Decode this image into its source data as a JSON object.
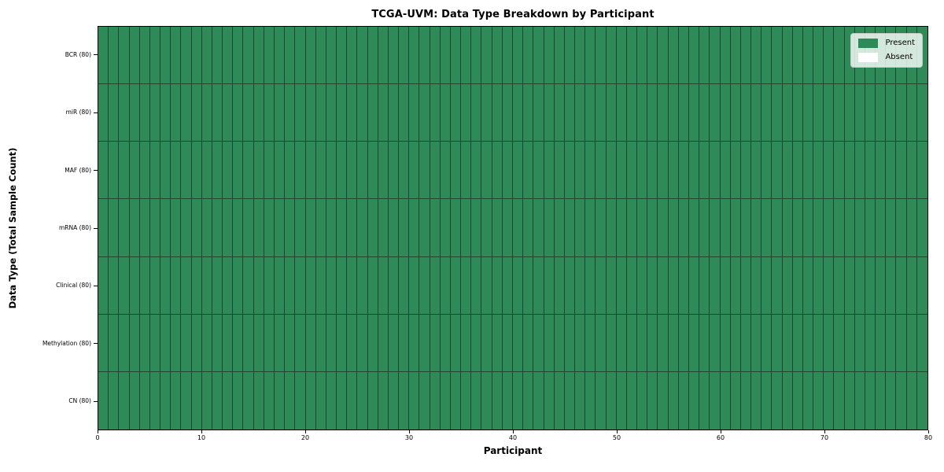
{
  "chart_data": {
    "type": "heatmap",
    "title": "TCGA-UVM: Data Type Breakdown by Participant",
    "xlabel": "Participant",
    "ylabel": "Data Type (Total Sample Count)",
    "xlim": [
      0,
      80
    ],
    "x_ticks": [
      0,
      10,
      20,
      30,
      40,
      50,
      60,
      70,
      80
    ],
    "n_participants": 80,
    "rows": [
      {
        "label": "BCR (80)",
        "present_count": 80,
        "absent_count": 0
      },
      {
        "label": "miR (80)",
        "present_count": 80,
        "absent_count": 0
      },
      {
        "label": "MAF (80)",
        "present_count": 80,
        "absent_count": 0
      },
      {
        "label": "mRNA (80)",
        "present_count": 80,
        "absent_count": 0
      },
      {
        "label": "Clinical (80)",
        "present_count": 80,
        "absent_count": 0
      },
      {
        "label": "Methylation (80)",
        "present_count": 80,
        "absent_count": 0
      },
      {
        "label": "CN (80)",
        "present_count": 80,
        "absent_count": 0
      }
    ],
    "legend": [
      {
        "label": "Present",
        "color": "#2e8b57"
      },
      {
        "label": "Absent",
        "color": "#ffffff"
      }
    ],
    "legend_position": "upper right",
    "grid": false,
    "colors": {
      "present": "#2e8b57",
      "absent": "#ffffff",
      "cell_border": "#1e4630",
      "axis": "#000000",
      "background": "#ffffff"
    }
  }
}
